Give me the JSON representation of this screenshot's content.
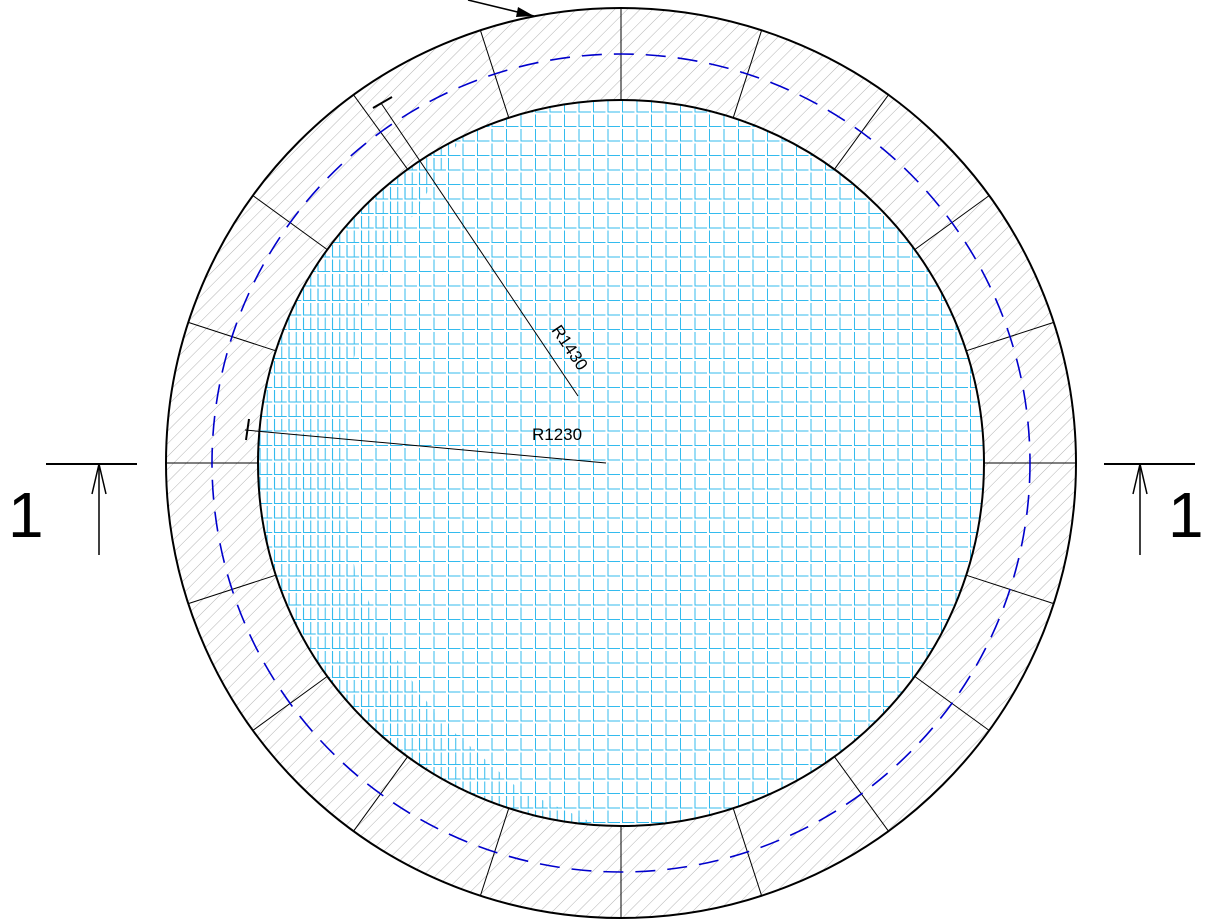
{
  "drawing": {
    "dimensions": {
      "outer_radius_label": "R1430",
      "inner_radius_label": "R1230"
    },
    "section_marks": {
      "left_label": "1",
      "right_label": "1"
    },
    "segment_count": 20,
    "colors": {
      "line": "#000000",
      "centerline_dashed": "#0000cc",
      "fill_grid": "#33bbee",
      "ring_hatch": "#b4b4b4",
      "background": "#ffffff"
    }
  }
}
